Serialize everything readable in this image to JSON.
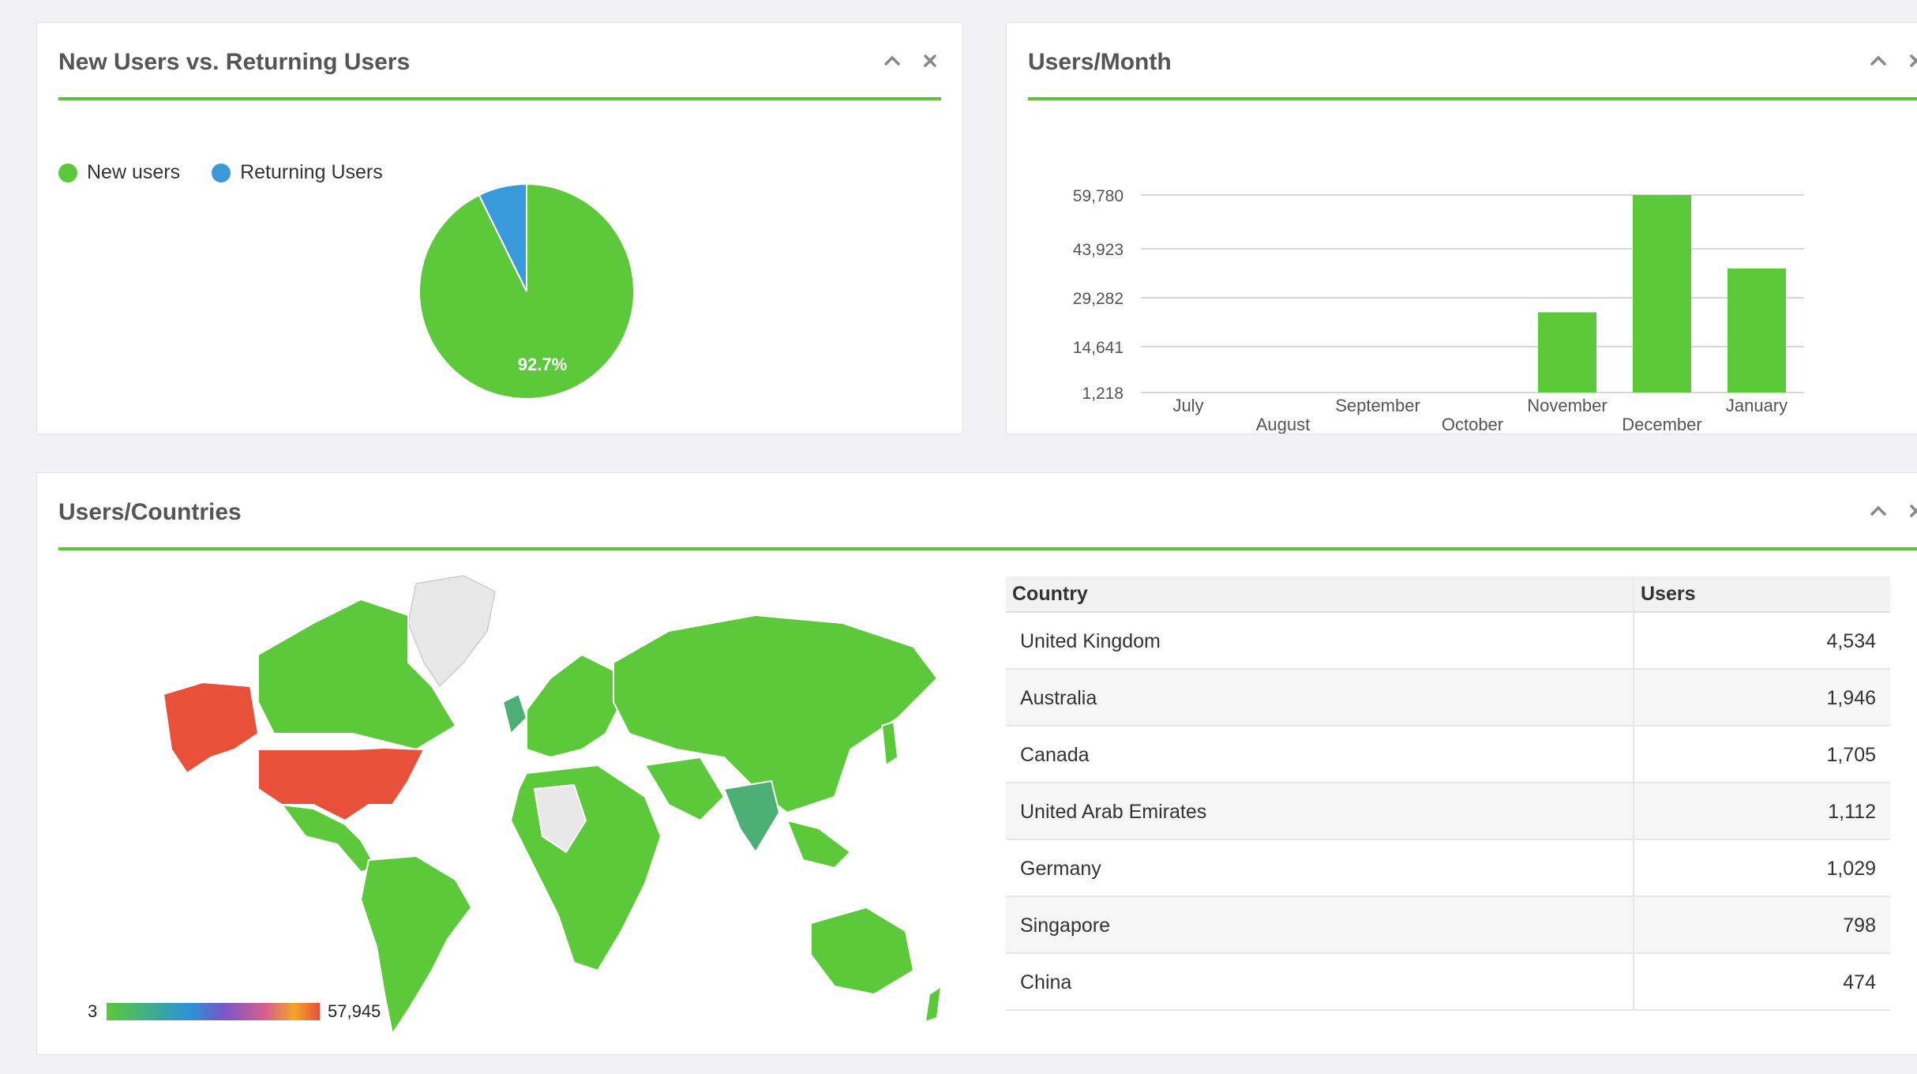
{
  "panels": {
    "pie": {
      "title": "New Users vs. Returning Users",
      "legend": [
        {
          "label": "New users",
          "color": "#5cc93a"
        },
        {
          "label": "Returning Users",
          "color": "#3a9ad9"
        }
      ],
      "slice_label": "92.7%"
    },
    "bar": {
      "title": "Users/Month"
    },
    "countries": {
      "title": "Users/Countries",
      "map": {
        "scale_min": "3",
        "scale_max": "57,945",
        "colors": {
          "high": "#e8503a",
          "mid": "#4caf73",
          "low": "#5cc93a",
          "none": "#e8e8e8"
        }
      },
      "table": {
        "headers": {
          "country": "Country",
          "users": "Users"
        },
        "rows": [
          {
            "country": "United Kingdom",
            "users": "4,534"
          },
          {
            "country": "Australia",
            "users": "1,946"
          },
          {
            "country": "Canada",
            "users": "1,705"
          },
          {
            "country": "United Arab Emirates",
            "users": "1,112"
          },
          {
            "country": "Germany",
            "users": "1,029"
          },
          {
            "country": "Singapore",
            "users": "798"
          },
          {
            "country": "China",
            "users": "474"
          }
        ]
      }
    }
  },
  "chart_data": [
    {
      "type": "pie",
      "title": "New Users vs. Returning Users",
      "series": [
        {
          "name": "New users",
          "value": 92.7,
          "color": "#5cc93a"
        },
        {
          "name": "Returning Users",
          "value": 7.3,
          "color": "#3a9ad9"
        }
      ],
      "labels": [
        "92.7%"
      ],
      "legend": "top-left"
    },
    {
      "type": "bar",
      "title": "Users/Month",
      "categories": [
        "July",
        "August",
        "September",
        "October",
        "November",
        "December",
        "January"
      ],
      "values": [
        0,
        0,
        0,
        0,
        25000,
        59780,
        38000
      ],
      "yticks": [
        "1,218",
        "14,641",
        "29,282",
        "43,923",
        "59,780"
      ],
      "ylim": [
        1218,
        59780
      ],
      "grid": true,
      "color": "#5cc93a"
    }
  ]
}
